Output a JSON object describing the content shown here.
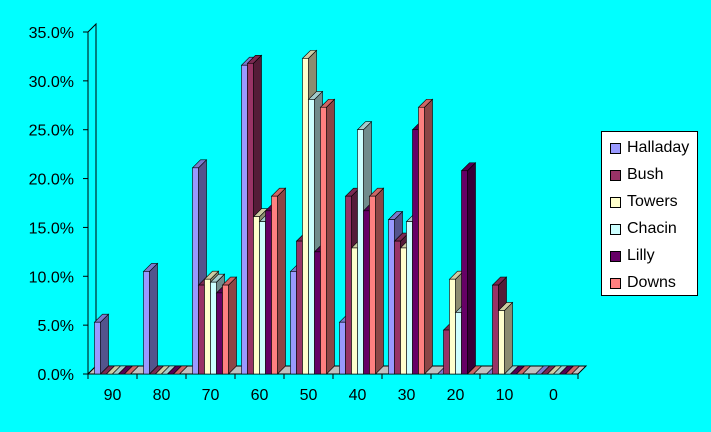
{
  "chart_data": {
    "type": "bar",
    "style": "3d-clustered-column",
    "categories": [
      "90",
      "80",
      "70",
      "60",
      "50",
      "40",
      "30",
      "20",
      "10",
      "0"
    ],
    "ylim": [
      0,
      35
    ],
    "y_ticks": [
      "0.0%",
      "5.0%",
      "10.0%",
      "15.0%",
      "20.0%",
      "25.0%",
      "30.0%",
      "35.0%"
    ],
    "grid": false,
    "legend_position": "right",
    "series": [
      {
        "name": "Halladay",
        "color": "#9999ff",
        "values": [
          5.3,
          10.5,
          21.1,
          31.6,
          10.5,
          5.3,
          15.8,
          0,
          0,
          0
        ]
      },
      {
        "name": "Bush",
        "color": "#993366",
        "values": [
          0,
          0,
          9.1,
          31.8,
          13.6,
          18.2,
          13.6,
          4.5,
          9.1,
          0
        ]
      },
      {
        "name": "Towers",
        "color": "#ffffcc",
        "values": [
          0,
          0,
          9.7,
          16.1,
          32.3,
          12.9,
          12.9,
          9.7,
          6.5,
          0
        ]
      },
      {
        "name": "Chacin",
        "color": "#ccffff",
        "values": [
          0,
          0,
          9.4,
          15.6,
          28.1,
          25.0,
          15.6,
          6.3,
          0,
          0
        ]
      },
      {
        "name": "Lilly",
        "color": "#660066",
        "values": [
          0,
          0,
          8.3,
          16.7,
          12.5,
          16.7,
          25.0,
          20.8,
          0,
          0
        ]
      },
      {
        "name": "Downs",
        "color": "#ff8080",
        "values": [
          0,
          0,
          9.1,
          18.2,
          27.3,
          18.2,
          27.3,
          0,
          0,
          0
        ]
      }
    ]
  }
}
